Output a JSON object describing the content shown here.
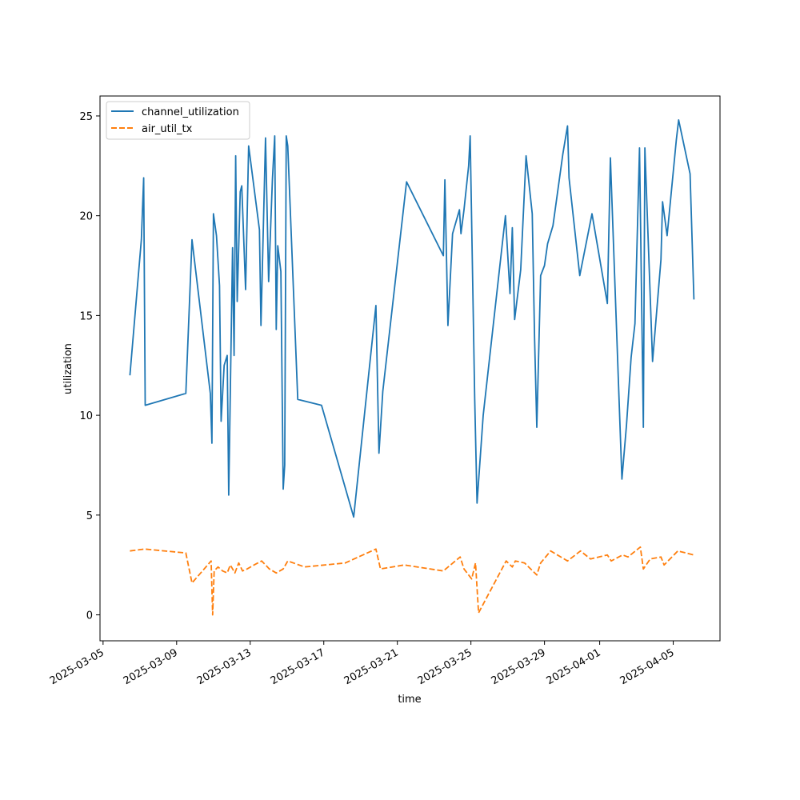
{
  "chart_data": {
    "type": "line",
    "xlabel": "time",
    "ylabel": "utilization",
    "x_ticks": [
      "2025-03-05",
      "2025-03-09",
      "2025-03-13",
      "2025-03-17",
      "2025-03-21",
      "2025-03-25",
      "2025-03-29",
      "2025-04-01",
      "2025-04-05"
    ],
    "y_ticks": [
      0,
      5,
      10,
      15,
      20,
      25
    ],
    "ylim": [
      -1.3,
      26.0
    ],
    "xlim": [
      "2025-03-04 20:00",
      "2025-04-07 13:00"
    ],
    "grid": false,
    "legend_position": "upper-left",
    "series": [
      {
        "name": "channel_utilization",
        "color": "#1f77b4",
        "dash": "solid",
        "points": [
          [
            "2025-03-06 11:00",
            12.0
          ],
          [
            "2025-03-07 02:00",
            18.8
          ],
          [
            "2025-03-07 05:00",
            21.9
          ],
          [
            "2025-03-07 07:00",
            10.5
          ],
          [
            "2025-03-09 12:00",
            11.1
          ],
          [
            "2025-03-09 20:00",
            18.8
          ],
          [
            "2025-03-10 20:00",
            11.1
          ],
          [
            "2025-03-10 22:00",
            8.6
          ],
          [
            "2025-03-11 00:00",
            20.1
          ],
          [
            "2025-03-11 04:00",
            19.0
          ],
          [
            "2025-03-11 08:00",
            16.5
          ],
          [
            "2025-03-11 10:00",
            9.7
          ],
          [
            "2025-03-11 14:00",
            12.5
          ],
          [
            "2025-03-11 18:00",
            13.0
          ],
          [
            "2025-03-11 20:00",
            6.0
          ],
          [
            "2025-03-12 01:00",
            18.4
          ],
          [
            "2025-03-12 03:00",
            13.0
          ],
          [
            "2025-03-12 05:00",
            23.0
          ],
          [
            "2025-03-12 07:00",
            15.7
          ],
          [
            "2025-03-12 11:00",
            21.2
          ],
          [
            "2025-03-12 13:00",
            21.5
          ],
          [
            "2025-03-12 18:00",
            16.3
          ],
          [
            "2025-03-12 22:00",
            23.5
          ],
          [
            "2025-03-13 12:00",
            19.3
          ],
          [
            "2025-03-13 14:00",
            14.5
          ],
          [
            "2025-03-13 20:00",
            23.9
          ],
          [
            "2025-03-14 00:00",
            16.7
          ],
          [
            "2025-03-14 05:00",
            21.8
          ],
          [
            "2025-03-14 08:00",
            24.0
          ],
          [
            "2025-03-14 10:00",
            14.3
          ],
          [
            "2025-03-14 12:00",
            18.5
          ],
          [
            "2025-03-14 16:00",
            17.2
          ],
          [
            "2025-03-14 19:00",
            6.3
          ],
          [
            "2025-03-14 21:00",
            7.5
          ],
          [
            "2025-03-14 23:00",
            24.0
          ],
          [
            "2025-03-15 01:00",
            23.5
          ],
          [
            "2025-03-15 14:00",
            10.8
          ],
          [
            "2025-03-16 21:00",
            10.5
          ],
          [
            "2025-03-18 15:00",
            4.9
          ],
          [
            "2025-03-19 20:00",
            15.5
          ],
          [
            "2025-03-20 00:00",
            8.1
          ],
          [
            "2025-03-20 05:00",
            11.2
          ],
          [
            "2025-03-21 12:00",
            21.7
          ],
          [
            "2025-03-23 12:00",
            18.0
          ],
          [
            "2025-03-23 14:00",
            21.8
          ],
          [
            "2025-03-23 18:00",
            14.5
          ],
          [
            "2025-03-24 00:00",
            19.1
          ],
          [
            "2025-03-24 09:00",
            20.3
          ],
          [
            "2025-03-24 11:00",
            19.1
          ],
          [
            "2025-03-24 15:00",
            20.3
          ],
          [
            "2025-03-24 21:00",
            22.5
          ],
          [
            "2025-03-24 23:00",
            24.0
          ],
          [
            "2025-03-25 05:00",
            10.8
          ],
          [
            "2025-03-25 08:00",
            5.6
          ],
          [
            "2025-03-25 16:00",
            10.0
          ],
          [
            "2025-03-26 21:00",
            20.0
          ],
          [
            "2025-03-27 03:00",
            16.1
          ],
          [
            "2025-03-27 06:00",
            19.4
          ],
          [
            "2025-03-27 09:00",
            14.8
          ],
          [
            "2025-03-27 17:00",
            17.3
          ],
          [
            "2025-03-28 00:00",
            23.0
          ],
          [
            "2025-03-28 08:00",
            20.1
          ],
          [
            "2025-03-28 11:00",
            13.9
          ],
          [
            "2025-03-28 14:00",
            9.4
          ],
          [
            "2025-03-28 19:00",
            17.0
          ],
          [
            "2025-03-29 00:00",
            17.5
          ],
          [
            "2025-03-29 04:00",
            18.6
          ],
          [
            "2025-03-29 11:00",
            19.5
          ],
          [
            "2025-03-30 00:00",
            23.1
          ],
          [
            "2025-03-30 06:00",
            24.5
          ],
          [
            "2025-03-30 08:00",
            21.9
          ],
          [
            "2025-03-30 22:00",
            17.0
          ],
          [
            "2025-03-31 14:00",
            20.1
          ],
          [
            "2025-04-01 10:00",
            15.6
          ],
          [
            "2025-04-01 14:00",
            22.9
          ],
          [
            "2025-04-02 05:00",
            6.8
          ],
          [
            "2025-04-02 11:00",
            9.5
          ],
          [
            "2025-04-02 17:00",
            12.9
          ],
          [
            "2025-04-02 22:00",
            14.6
          ],
          [
            "2025-04-03 04:00",
            23.4
          ],
          [
            "2025-04-03 09:00",
            9.4
          ],
          [
            "2025-04-03 11:00",
            23.4
          ],
          [
            "2025-04-03 21:00",
            12.7
          ],
          [
            "2025-04-04 08:00",
            17.8
          ],
          [
            "2025-04-04 10:00",
            20.7
          ],
          [
            "2025-04-04 16:00",
            19.0
          ],
          [
            "2025-04-05 04:00",
            23.8
          ],
          [
            "2025-04-05 07:00",
            24.8
          ],
          [
            "2025-04-05 22:00",
            22.1
          ],
          [
            "2025-04-06 03:00",
            15.8
          ]
        ]
      },
      {
        "name": "air_util_tx",
        "color": "#ff7f0e",
        "dash": "dashed",
        "points": [
          [
            "2025-03-06 11:00",
            3.2
          ],
          [
            "2025-03-07 06:00",
            3.3
          ],
          [
            "2025-03-09 12:00",
            3.1
          ],
          [
            "2025-03-09 20:00",
            1.6
          ],
          [
            "2025-03-10 21:00",
            2.7
          ],
          [
            "2025-03-10 23:00",
            0.0
          ],
          [
            "2025-03-11 01:00",
            2.2
          ],
          [
            "2025-03-11 06:00",
            2.4
          ],
          [
            "2025-03-11 12:00",
            2.2
          ],
          [
            "2025-03-11 18:00",
            2.1
          ],
          [
            "2025-03-11 22:00",
            2.5
          ],
          [
            "2025-03-12 04:00",
            2.1
          ],
          [
            "2025-03-12 09:00",
            2.6
          ],
          [
            "2025-03-12 14:00",
            2.2
          ],
          [
            "2025-03-12 20:00",
            2.3
          ],
          [
            "2025-03-13 05:00",
            2.5
          ],
          [
            "2025-03-13 15:00",
            2.7
          ],
          [
            "2025-03-14 01:00",
            2.3
          ],
          [
            "2025-03-14 10:00",
            2.1
          ],
          [
            "2025-03-14 19:00",
            2.3
          ],
          [
            "2025-03-15 01:00",
            2.7
          ],
          [
            "2025-03-15 23:00",
            2.4
          ],
          [
            "2025-03-18 04:00",
            2.6
          ],
          [
            "2025-03-19 20:00",
            3.3
          ],
          [
            "2025-03-20 02:00",
            2.3
          ],
          [
            "2025-03-21 09:00",
            2.5
          ],
          [
            "2025-03-23 12:00",
            2.2
          ],
          [
            "2025-03-24 10:00",
            2.9
          ],
          [
            "2025-03-24 15:00",
            2.3
          ],
          [
            "2025-03-25 01:00",
            1.8
          ],
          [
            "2025-03-25 06:00",
            2.6
          ],
          [
            "2025-03-25 10:00",
            0.1
          ],
          [
            "2025-03-26 22:00",
            2.7
          ],
          [
            "2025-03-27 06:00",
            2.4
          ],
          [
            "2025-03-27 10:00",
            2.7
          ],
          [
            "2025-03-27 22:00",
            2.6
          ],
          [
            "2025-03-28 14:00",
            2.0
          ],
          [
            "2025-03-28 19:00",
            2.6
          ],
          [
            "2025-03-29 08:00",
            3.2
          ],
          [
            "2025-03-30 06:00",
            2.7
          ],
          [
            "2025-03-30 23:00",
            3.2
          ],
          [
            "2025-03-31 12:00",
            2.8
          ],
          [
            "2025-04-01 10:00",
            3.0
          ],
          [
            "2025-04-01 15:00",
            2.7
          ],
          [
            "2025-04-02 06:00",
            3.0
          ],
          [
            "2025-04-02 13:00",
            2.9
          ],
          [
            "2025-04-03 05:00",
            3.4
          ],
          [
            "2025-04-03 09:00",
            2.3
          ],
          [
            "2025-04-03 18:00",
            2.8
          ],
          [
            "2025-04-04 08:00",
            2.9
          ],
          [
            "2025-04-04 12:00",
            2.5
          ],
          [
            "2025-04-05 06:00",
            3.2
          ],
          [
            "2025-04-06 03:00",
            3.0
          ]
        ]
      }
    ]
  }
}
